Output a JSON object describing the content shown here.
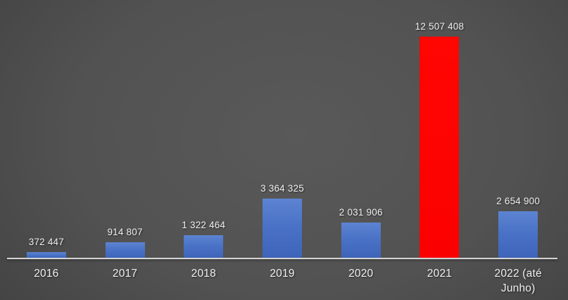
{
  "chart_data": {
    "type": "bar",
    "title": "",
    "xlabel": "",
    "ylabel": "",
    "categories": [
      "2016",
      "2017",
      "2018",
      "2019",
      "2020",
      "2021",
      "2022 (até Junho)"
    ],
    "values": [
      372447,
      914807,
      1322464,
      3364325,
      2031906,
      12507408,
      2654900
    ],
    "value_labels": [
      "372 447",
      "914 807",
      "1 322 464",
      "3 364 325",
      "2 031 906",
      "12 507 408",
      "2 654 900"
    ],
    "highlight_index": 5,
    "ylim": [
      0,
      12507408
    ],
    "grid": false,
    "legend": false,
    "value_labels_position": "above-bars",
    "colors": {
      "bar_default": "#4a72c6",
      "bar_highlight": "#ff0000",
      "axis_line": "#d4d4d4",
      "label_text": "#f0f0f0",
      "background_center": "#595959",
      "background_edge": "#282828"
    }
  }
}
